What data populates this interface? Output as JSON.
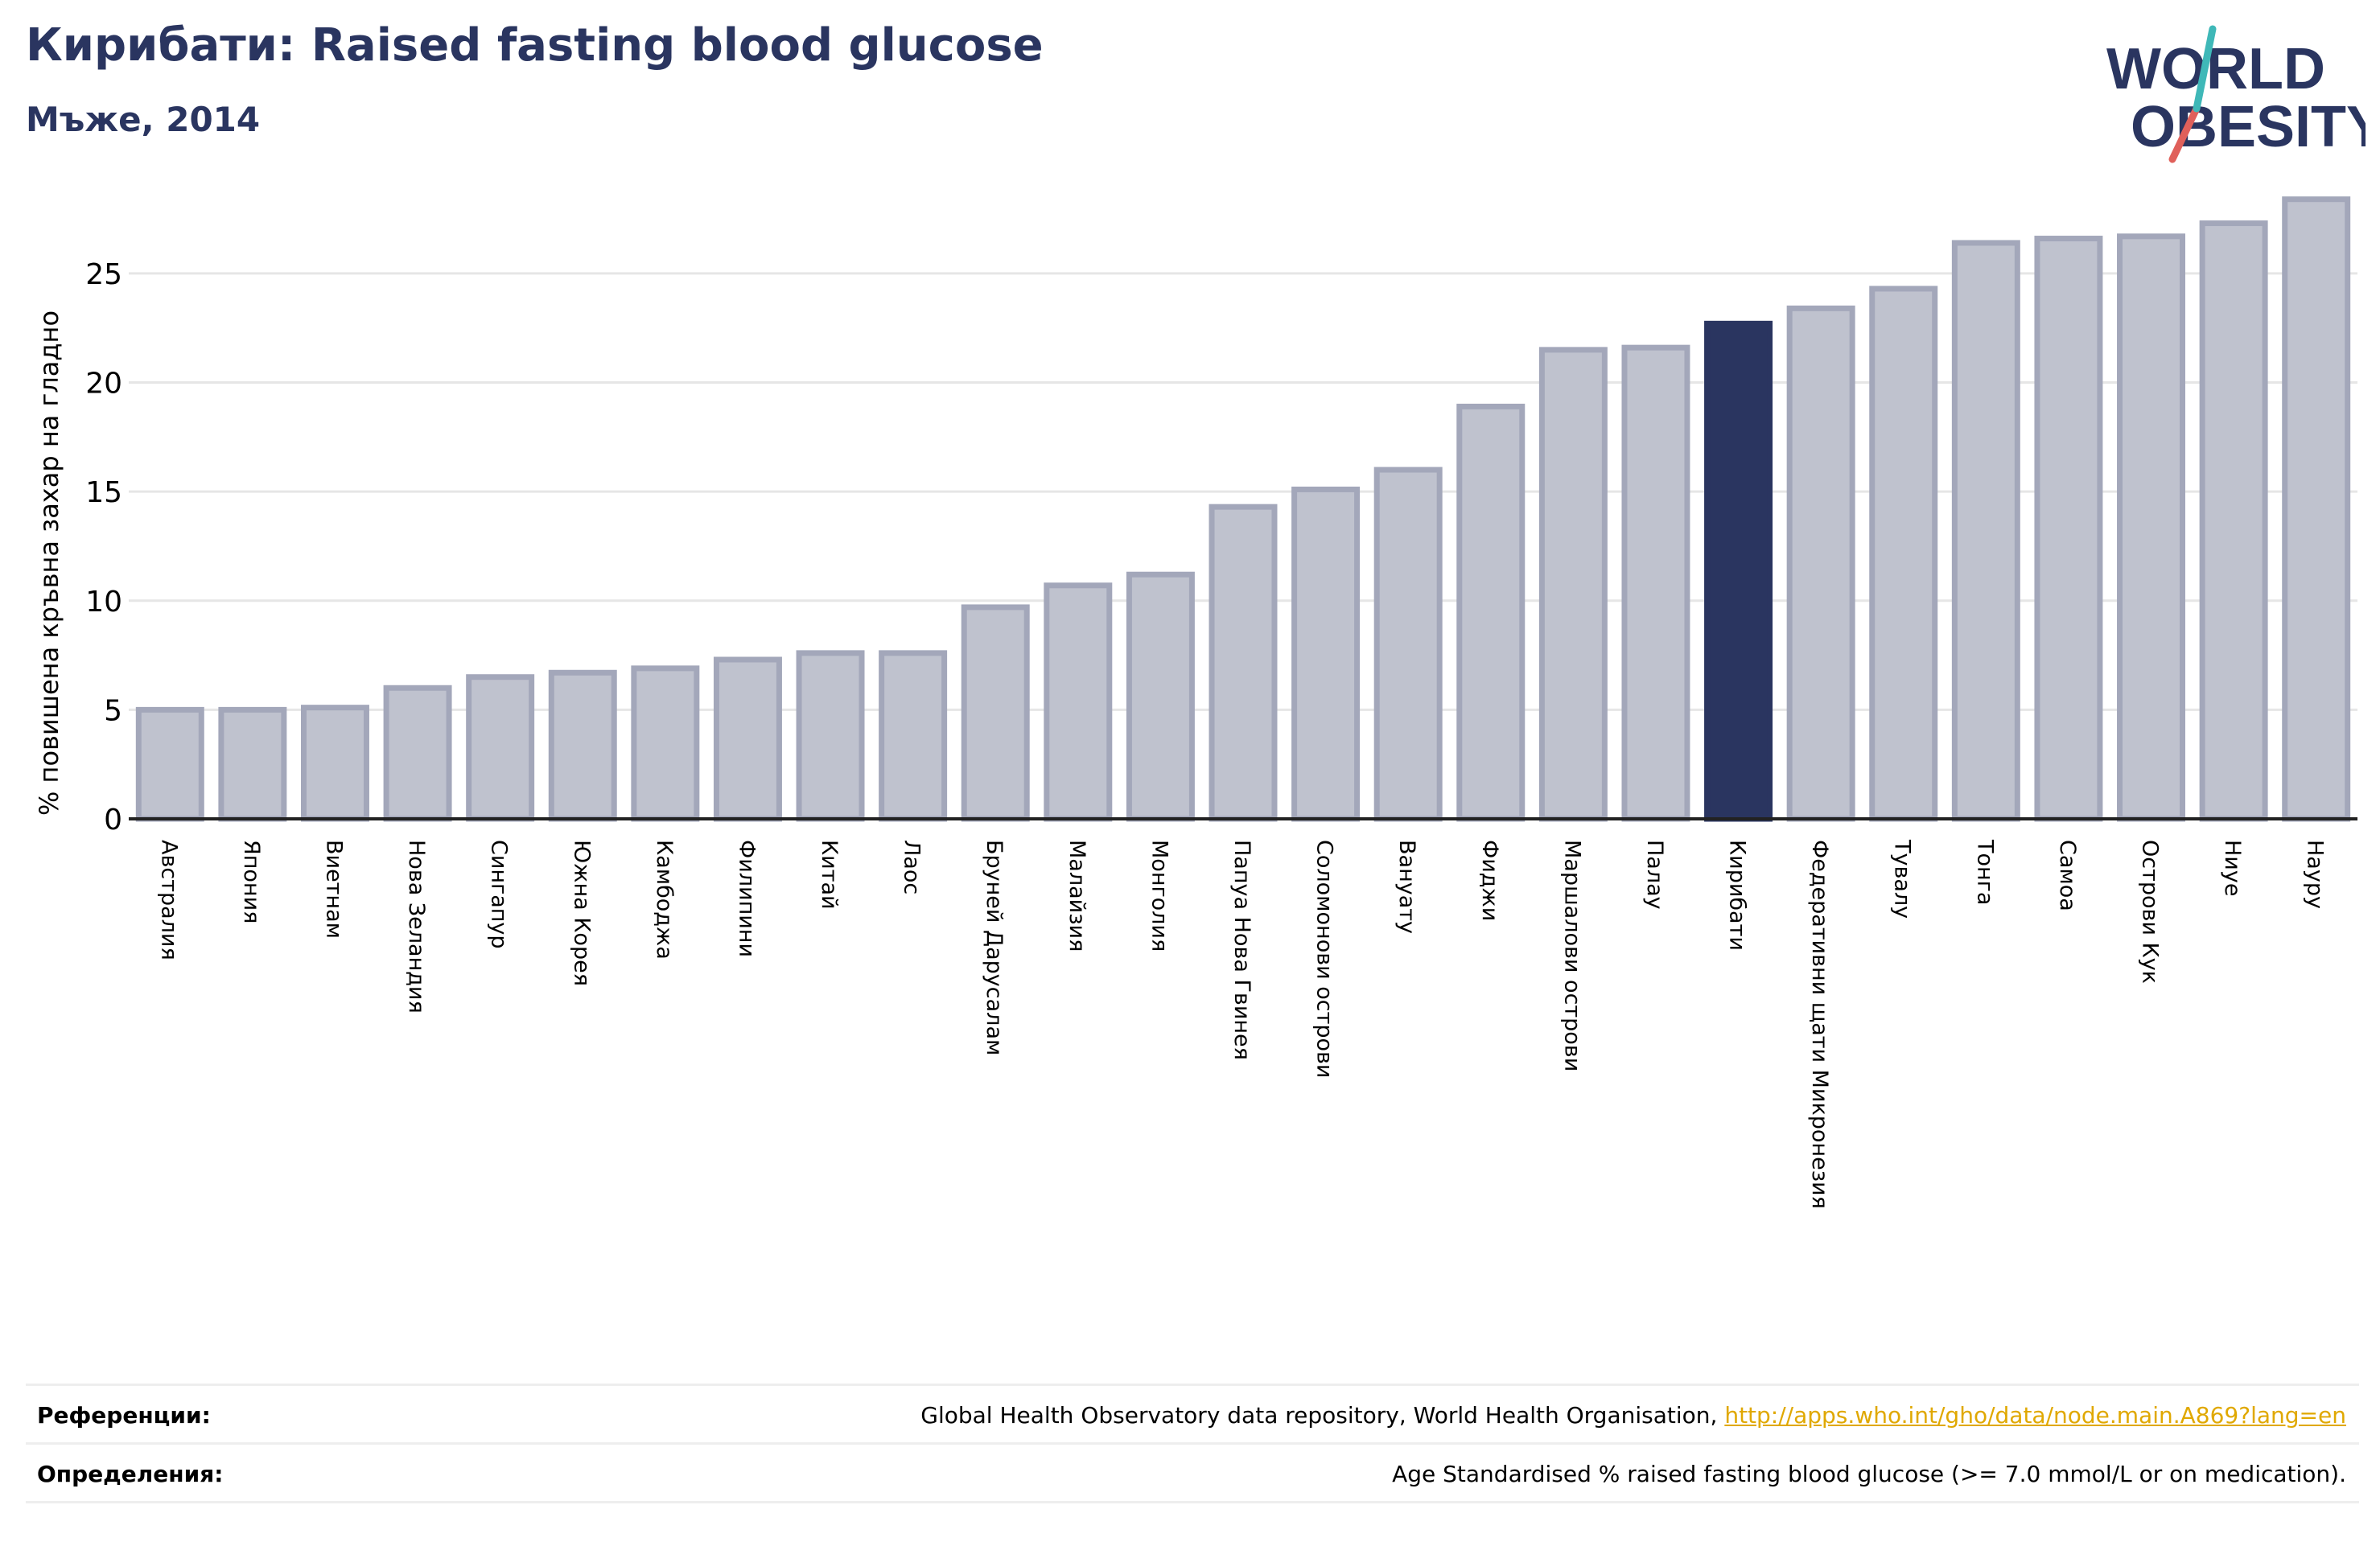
{
  "title": "Кирибати: Raised fasting blood glucose",
  "subtitle": "Мъже, 2014",
  "logo": {
    "line1": "WORLD",
    "line2": "OBESITY"
  },
  "colors": {
    "highlight": "#2a3560",
    "bar_fill": "#bfc2ce",
    "bar_stroke": "#a3a7ba",
    "text": "#2a3560",
    "link": "#e0a800",
    "logo_teal": "#3fb8b8",
    "logo_red": "#e0605a"
  },
  "chart_data": {
    "type": "bar",
    "ylabel": "% повишена кръвна захар на гладно",
    "ylim": [
      0,
      28.5
    ],
    "yticks": [
      0,
      5,
      10,
      15,
      20,
      25
    ],
    "grid": true,
    "highlight": "Кирибати",
    "categories": [
      "Австралия",
      "Япония",
      "Виетнам",
      "Нова Зеландия",
      "Сингапур",
      "Южна Корея",
      "Камбоджа",
      "Филипини",
      "Китай",
      "Лаос",
      "Бруней Дарусалам",
      "Малайзия",
      "Монголия",
      "Папуа Нова Гвинея",
      "Соломонови острови",
      "Вануату",
      "Фиджи",
      "Маршалови острови",
      "Палау",
      "Кирибати",
      "Федеративни щати Микронезия",
      "Тувалу",
      "Тонга",
      "Самоа",
      "Острови Кук",
      "Ниуе",
      "Науру"
    ],
    "values": [
      5.0,
      5.0,
      5.1,
      6.0,
      6.5,
      6.7,
      6.9,
      7.3,
      7.6,
      7.6,
      9.7,
      10.7,
      11.2,
      14.3,
      15.1,
      16.0,
      18.9,
      21.5,
      21.6,
      22.7,
      23.4,
      24.3,
      26.4,
      26.6,
      26.7,
      27.3,
      28.4
    ]
  },
  "references": [
    {
      "label": "Референции:",
      "text": "Global Health Observatory data repository, World Health Organisation, ",
      "link": "http://apps.who.int/gho/data/node.main.A869?lang=en"
    },
    {
      "label": "Определения:",
      "text": "Age Standardised % raised fasting blood glucose (>= 7.0 mmol/L or on medication).",
      "link": ""
    }
  ]
}
